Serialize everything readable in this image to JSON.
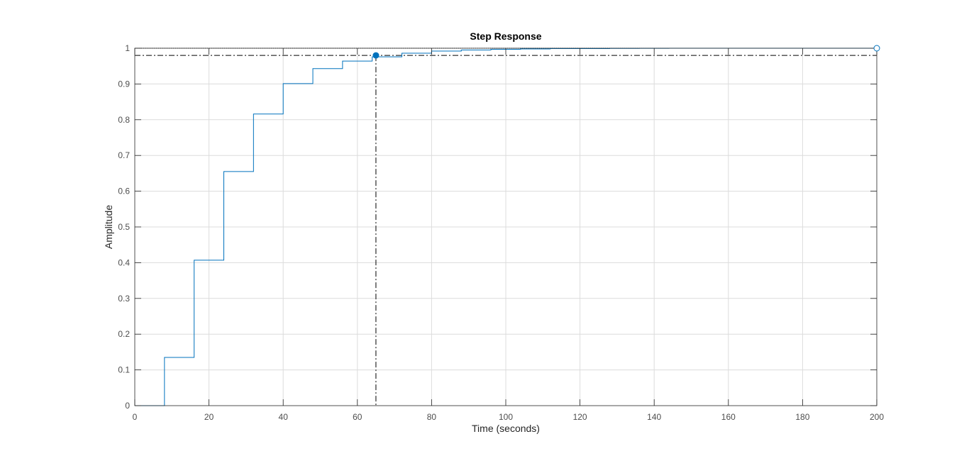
{
  "chart_data": {
    "type": "line",
    "title": "Step Response",
    "xlabel": "Time (seconds)",
    "ylabel": "Amplitude",
    "xlim": [
      0,
      200
    ],
    "ylim": [
      0,
      1
    ],
    "x_ticks": [
      0,
      20,
      40,
      60,
      80,
      100,
      120,
      140,
      160,
      180,
      200
    ],
    "y_ticks": [
      0,
      0.1,
      0.2,
      0.3,
      0.4,
      0.5,
      0.6,
      0.7,
      0.8,
      0.9,
      1
    ],
    "x_tick_labels": [
      "0",
      "20",
      "40",
      "60",
      "80",
      "100",
      "120",
      "140",
      "160",
      "180",
      "200"
    ],
    "y_tick_labels": [
      "0",
      "0.1",
      "0.2",
      "0.3",
      "0.4",
      "0.5",
      "0.6",
      "0.7",
      "0.8",
      "0.9",
      "1"
    ],
    "grid": true,
    "series": [
      {
        "style": "stairs",
        "color": "#0072BD",
        "x": [
          0,
          8,
          16,
          24,
          32,
          40,
          48,
          56,
          64,
          72,
          80,
          88,
          96,
          104,
          112,
          120,
          128,
          136,
          144,
          200
        ],
        "values": [
          0,
          0.135,
          0.407,
          0.655,
          0.816,
          0.901,
          0.943,
          0.964,
          0.976,
          0.986,
          0.992,
          0.995,
          0.997,
          0.998,
          0.999,
          0.999,
          0.9995,
          0.9998,
          1.0,
          1.0
        ]
      }
    ],
    "reference_lines": {
      "final_value": 1.0,
      "settling_band_lower": 0.98,
      "settling_time": 65
    },
    "settling_marker": {
      "x": 65,
      "y": 0.98
    },
    "final_marker": {
      "x": 200,
      "y": 1.0
    },
    "colors": {
      "line": "#0072BD",
      "grid": "#dcdcdc",
      "axis": "#262626",
      "ticks_text": "#4d4d4d",
      "reference": "#000000"
    }
  }
}
